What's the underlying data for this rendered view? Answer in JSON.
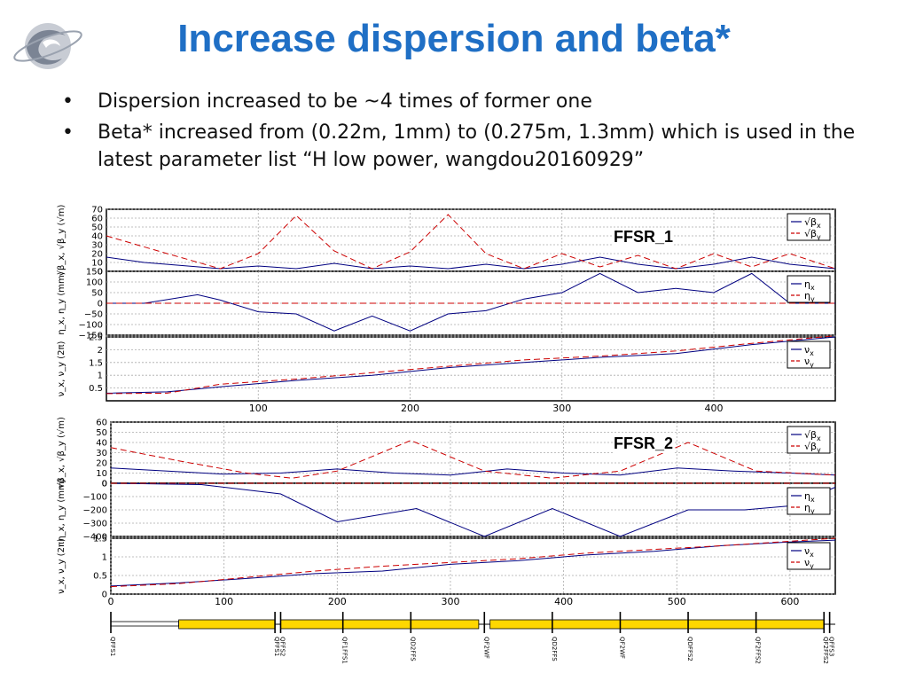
{
  "slide": {
    "title": "Increase dispersion and beta*",
    "bullets": [
      "Dispersion increased to be ~4 times of former one",
      "Beta* increased from (0.22m, 1mm) to (0.275m, 1.3mm) which is used in the latest parameter list “H low power, wangdou20160929”"
    ],
    "bullet_symbol": "•",
    "title_color": "#1F6FC5",
    "logo_icon": "institute-logo-icon"
  },
  "chart_data": [
    {
      "type": "line",
      "label": "FFSR_1",
      "xlim": [
        0,
        480
      ],
      "x_ticks": [
        100,
        200,
        300,
        400
      ],
      "grid": true,
      "subplots": [
        {
          "ylabel": "√β_x, √β_y (√m)",
          "ylim": [
            0,
            70
          ],
          "y_ticks": [
            0,
            10,
            20,
            30,
            40,
            50,
            60,
            70
          ],
          "legend": [
            "√β_x",
            "√β_y"
          ],
          "legend_position": "top-right",
          "series": [
            {
              "key": "√β_x",
              "color": "#000080",
              "dash": "solid",
              "x": [
                0,
                25,
                75,
                100,
                125,
                150,
                175,
                200,
                225,
                250,
                275,
                300,
                325,
                350,
                375,
                400,
                425,
                450,
                480
              ],
              "y": [
                16,
                10,
                3,
                6,
                3,
                9,
                3,
                6,
                3,
                8,
                3,
                8,
                16,
                8,
                3,
                8,
                16,
                8,
                3
              ]
            },
            {
              "key": "√β_y",
              "color": "#CC0000",
              "dash": "dashed",
              "x": [
                0,
                40,
                75,
                100,
                125,
                150,
                175,
                200,
                225,
                250,
                275,
                300,
                325,
                350,
                375,
                400,
                425,
                450,
                480
              ],
              "y": [
                40,
                20,
                3,
                20,
                63,
                23,
                3,
                22,
                64,
                20,
                3,
                20,
                5,
                18,
                3,
                20,
                5,
                20,
                3
              ]
            }
          ]
        },
        {
          "ylabel": "η_x, η_y (mm)",
          "ylim": [
            -150,
            150
          ],
          "y_ticks": [
            -150,
            -100,
            -50,
            0,
            50,
            100,
            150
          ],
          "legend": [
            "η_x",
            "η_y"
          ],
          "legend_position": "top-right",
          "series": [
            {
              "key": "η_x",
              "color": "#000080",
              "dash": "solid",
              "x": [
                0,
                25,
                60,
                75,
                100,
                125,
                150,
                175,
                200,
                225,
                250,
                275,
                300,
                325,
                350,
                375,
                400,
                425,
                450,
                480
              ],
              "y": [
                0,
                0,
                40,
                15,
                -40,
                -50,
                -130,
                -60,
                -130,
                -50,
                -35,
                20,
                50,
                140,
                50,
                70,
                50,
                140,
                0,
                0
              ]
            },
            {
              "key": "η_y",
              "color": "#CC0000",
              "dash": "dashed",
              "x": [
                0,
                480
              ],
              "y": [
                0,
                0
              ]
            }
          ]
        },
        {
          "ylabel": "ν_x, ν_y (2π)",
          "ylim": [
            0,
            2.5
          ],
          "y_ticks": [
            0.5,
            1,
            1.5,
            2,
            2.5
          ],
          "legend": [
            "ν_x",
            "ν_y"
          ],
          "legend_position": "top-right",
          "series": [
            {
              "key": "ν_x",
              "color": "#000080",
              "dash": "solid",
              "x": [
                0,
                40,
                75,
                125,
                175,
                225,
                275,
                325,
                375,
                425,
                480
              ],
              "y": [
                0.3,
                0.35,
                0.55,
                0.8,
                1.0,
                1.3,
                1.5,
                1.7,
                1.85,
                2.2,
                2.5
              ]
            },
            {
              "key": "ν_y",
              "color": "#CC0000",
              "dash": "dashed",
              "x": [
                0,
                40,
                75,
                125,
                175,
                225,
                275,
                325,
                375,
                425,
                480
              ],
              "y": [
                0.28,
                0.3,
                0.65,
                0.85,
                1.1,
                1.35,
                1.6,
                1.75,
                1.95,
                2.25,
                2.55
              ]
            }
          ]
        }
      ]
    },
    {
      "type": "line",
      "label": "FFSR_2",
      "xlim": [
        0,
        640
      ],
      "x_ticks": [
        0,
        100,
        200,
        300,
        400,
        500,
        600
      ],
      "grid": true,
      "subplots": [
        {
          "ylabel": "√β_x, √β_y (√m)",
          "ylim": [
            0,
            60
          ],
          "y_ticks": [
            0,
            10,
            20,
            30,
            40,
            50,
            60
          ],
          "legend": [
            "√β_x",
            "√β_y"
          ],
          "legend_position": "top-right",
          "series": [
            {
              "key": "√β_x",
              "color": "#000080",
              "dash": "solid",
              "x": [
                0,
                50,
                100,
                150,
                200,
                250,
                300,
                350,
                400,
                450,
                500,
                550,
                600,
                640
              ],
              "y": [
                15,
                12,
                9,
                10,
                14,
                10,
                8,
                14,
                10,
                8,
                15,
                12,
                10,
                8
              ]
            },
            {
              "key": "√β_y",
              "color": "#CC0000",
              "dash": "dashed",
              "x": [
                0,
                60,
                120,
                160,
                200,
                265,
                330,
                390,
                450,
                510,
                570,
                640
              ],
              "y": [
                35,
                22,
                10,
                5,
                12,
                42,
                12,
                5,
                12,
                40,
                12,
                8
              ]
            }
          ]
        },
        {
          "ylabel": "η_x, η_y (mm)",
          "ylim": [
            -400,
            0
          ],
          "y_ticks": [
            -400,
            -300,
            -200,
            -100,
            0
          ],
          "legend": [
            "η_x",
            "η_y"
          ],
          "legend_position": "top-right",
          "series": [
            {
              "key": "η_x",
              "color": "#000080",
              "dash": "solid",
              "x": [
                0,
                80,
                150,
                200,
                270,
                330,
                390,
                450,
                510,
                560,
                600,
                640
              ],
              "y": [
                0,
                -10,
                -80,
                -290,
                -190,
                -400,
                -190,
                -400,
                -200,
                -200,
                -170,
                -30
              ]
            },
            {
              "key": "η_y",
              "color": "#CC0000",
              "dash": "dashed",
              "x": [
                0,
                640
              ],
              "y": [
                0,
                0
              ]
            }
          ]
        },
        {
          "ylabel": "ν_x, ν_y (2π)",
          "ylim": [
            0,
            1.5
          ],
          "y_ticks": [
            0,
            0.5,
            1,
            1.5
          ],
          "legend": [
            "ν_x",
            "ν_y"
          ],
          "legend_position": "top-right",
          "series": [
            {
              "key": "ν_x",
              "color": "#000080",
              "dash": "solid",
              "x": [
                0,
                60,
                120,
                180,
                240,
                300,
                360,
                420,
                480,
                540,
                600,
                640
              ],
              "y": [
                0.22,
                0.3,
                0.42,
                0.55,
                0.62,
                0.8,
                0.9,
                1.05,
                1.15,
                1.3,
                1.4,
                1.45
              ]
            },
            {
              "key": "ν_y",
              "color": "#CC0000",
              "dash": "dashed",
              "x": [
                0,
                60,
                120,
                180,
                240,
                300,
                360,
                420,
                480,
                540,
                600,
                640
              ],
              "y": [
                0.2,
                0.28,
                0.45,
                0.62,
                0.75,
                0.85,
                0.95,
                1.1,
                1.2,
                1.3,
                1.42,
                1.5
              ]
            }
          ]
        }
      ]
    }
  ],
  "lattice": {
    "xlim": [
      0,
      640
    ],
    "magnet_color": "#FFD700",
    "blocks": [
      {
        "x0": 60,
        "x1": 145
      },
      {
        "x0": 150,
        "x1": 325
      },
      {
        "x0": 335,
        "x1": 510
      },
      {
        "x0": 510,
        "x1": 630
      }
    ],
    "markers": [
      0,
      145,
      150,
      205,
      265,
      330,
      390,
      450,
      510,
      570,
      630,
      635
    ],
    "element_labels": [
      "QFFS1",
      "QFFS1",
      "QFFS2",
      "QF1FFS1",
      "QD2FFS",
      "QF2WF",
      "QD2FFS",
      "QF2WF",
      "QDFFS2",
      "QF2FFS2",
      "QF2FFS2",
      "QFFS3"
    ]
  }
}
